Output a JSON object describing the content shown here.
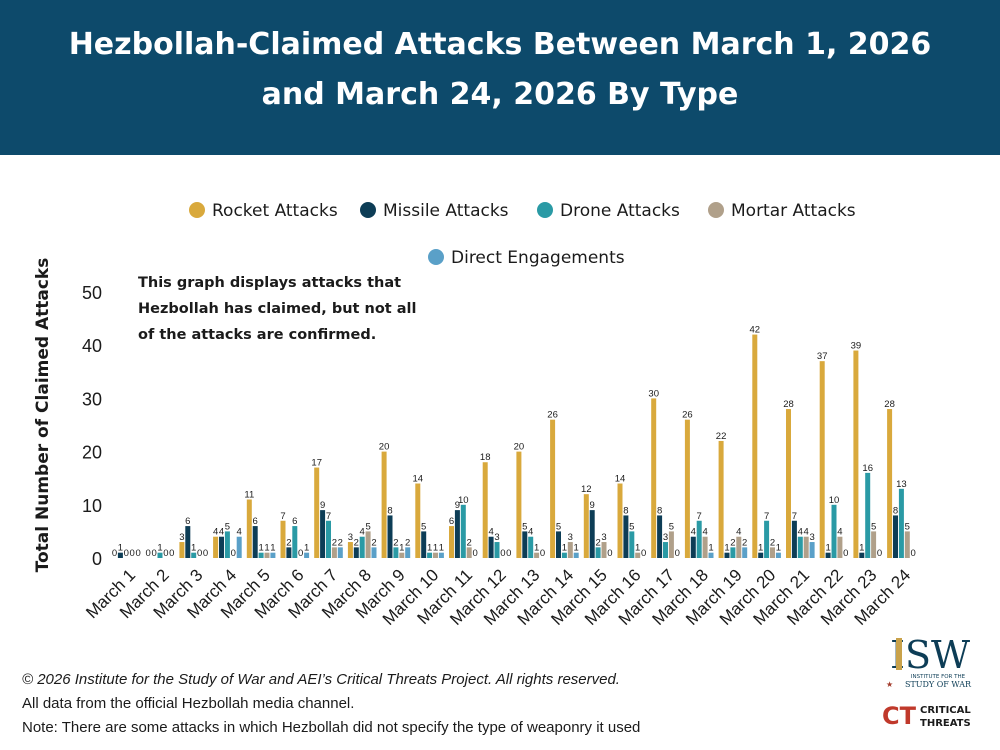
{
  "header": {
    "title_line1": "Hezbollah-Claimed Attacks Between March 1, 2026",
    "title_line2": "and March 24, 2026 By Type",
    "background_color": "#0d4a6b"
  },
  "note": {
    "line1": "This graph displays attacks that",
    "line2": "Hezbollah has claimed, but not all",
    "line3": "of the attacks are confirmed."
  },
  "footer": {
    "copyright": "© 2026 Institute for the Study of War and AEI’s Critical Threats Project. All rights reserved.",
    "source": "All data from the official Hezbollah media channel.",
    "note": "Note: There are some attacks in which Hezbollah did not specify the type of weaponry it used"
  },
  "logos": {
    "isw_mark": "ISW",
    "isw_tagline_1": "INSTITUTE FOR THE",
    "isw_tagline_2": "STUDY OF WAR",
    "ct_mark": "CT",
    "ct_line1": "CRITICAL",
    "ct_line2": "THREATS"
  },
  "chart_data": {
    "type": "bar",
    "ylabel": "Total Number of Claimed Attacks",
    "ylim": [
      0,
      50
    ],
    "yticks": [
      0,
      10,
      20,
      30,
      40,
      50
    ],
    "grid": false,
    "legend_position": "top",
    "categories": [
      "March 1",
      "March 2",
      "March 3",
      "March 4",
      "March 5",
      "March 6",
      "March 7",
      "March 8",
      "March 9",
      "March 10",
      "March 11",
      "March 12",
      "March 13",
      "March 14",
      "March 15",
      "March 16",
      "March 17",
      "March 18",
      "March 19",
      "March 20",
      "March 21",
      "March 22",
      "March 23",
      "March 24"
    ],
    "series": [
      {
        "name": "Rocket Attacks",
        "color": "#d9a93c",
        "values": [
          0,
          0,
          3,
          4,
          11,
          7,
          17,
          3,
          20,
          14,
          6,
          18,
          20,
          26,
          12,
          14,
          30,
          26,
          22,
          42,
          28,
          37,
          39,
          28
        ]
      },
      {
        "name": "Missile Attacks",
        "color": "#0d3d56",
        "values": [
          1,
          0,
          6,
          4,
          6,
          2,
          9,
          2,
          8,
          5,
          9,
          4,
          5,
          5,
          9,
          8,
          8,
          4,
          1,
          1,
          7,
          1,
          1,
          8
        ]
      },
      {
        "name": "Drone Attacks",
        "color": "#2a9aa5",
        "values": [
          0,
          1,
          1,
          5,
          1,
          6,
          7,
          4,
          2,
          1,
          10,
          3,
          4,
          1,
          2,
          5,
          3,
          7,
          2,
          7,
          4,
          10,
          16,
          13
        ]
      },
      {
        "name": "Mortar Attacks",
        "color": "#b0a08a",
        "values": [
          0,
          0,
          0,
          0,
          1,
          0,
          2,
          5,
          1,
          1,
          2,
          0,
          1,
          3,
          3,
          1,
          5,
          4,
          4,
          2,
          4,
          4,
          5,
          5
        ]
      },
      {
        "name": "Direct Engagements",
        "color": "#5aa0c8",
        "values": [
          0,
          0,
          0,
          4,
          1,
          1,
          2,
          2,
          2,
          1,
          0,
          0,
          0,
          1,
          0,
          0,
          0,
          1,
          2,
          1,
          3,
          0,
          0,
          0
        ]
      }
    ]
  }
}
